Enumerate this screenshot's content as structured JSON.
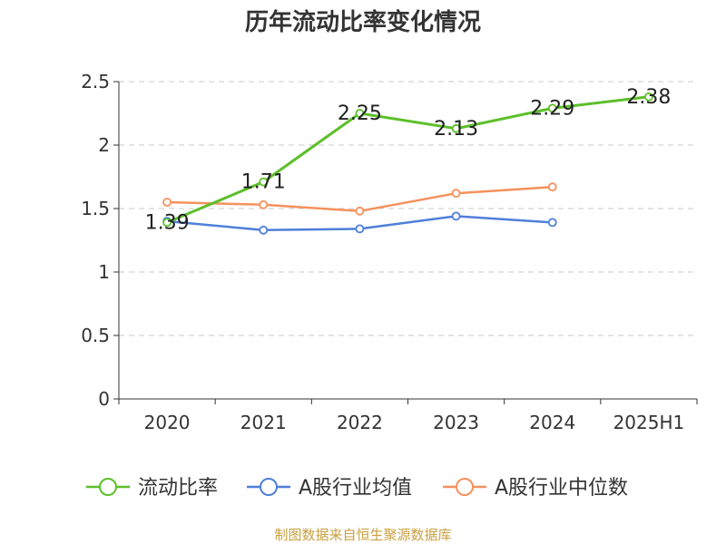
{
  "chart_data": {
    "type": "line",
    "title": "历年流动比率变化情况",
    "categories": [
      "2020",
      "2021",
      "2022",
      "2023",
      "2024",
      "2025H1"
    ],
    "y_ticks": [
      "0",
      "0.5",
      "1",
      "1.5",
      "2",
      "2.5"
    ],
    "ylim": [
      0,
      2.5
    ],
    "xlabel": "",
    "ylabel": "",
    "grid": "horizontal dashed",
    "legend_position": "bottom",
    "series": [
      {
        "name": "流动比率",
        "color": "#5CBF2A",
        "values": [
          1.39,
          1.71,
          2.25,
          2.13,
          2.29,
          2.38
        ],
        "labels": [
          "1.39",
          "1.71",
          "2.25",
          "2.13",
          "2.29",
          "2.38"
        ]
      },
      {
        "name": "A股行业均值",
        "color": "#4F7FD9",
        "values": [
          1.4,
          1.33,
          1.34,
          1.44,
          1.39,
          null
        ]
      },
      {
        "name": "A股行业中位数",
        "color": "#F5915C",
        "values": [
          1.55,
          1.53,
          1.48,
          1.62,
          1.67,
          null
        ]
      }
    ],
    "footer": {
      "text": "制图数据来自恒生聚源数据库",
      "color": "#C8A040"
    }
  }
}
